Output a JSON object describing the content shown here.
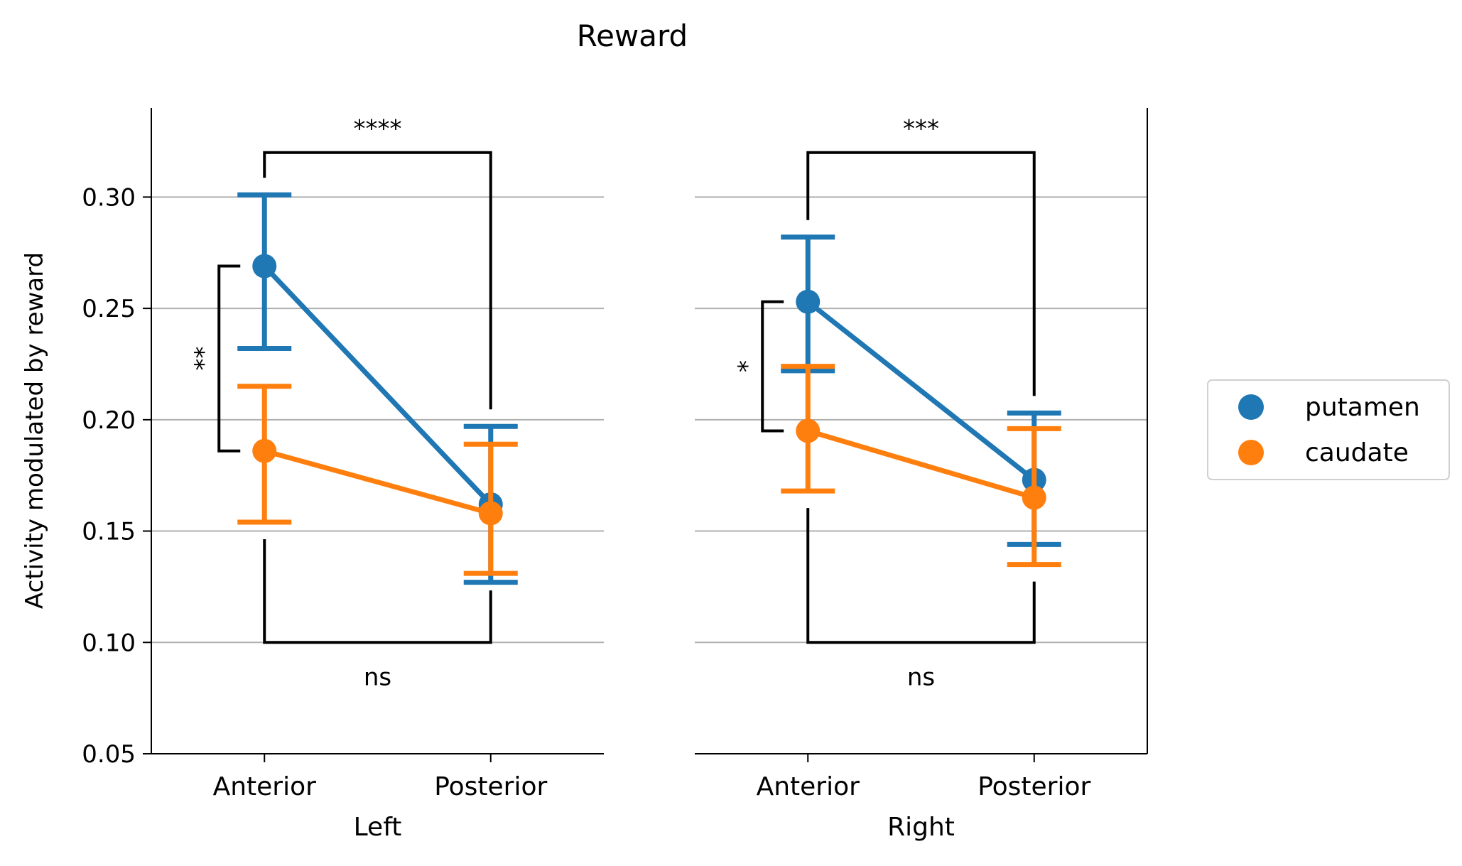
{
  "chart_data": {
    "type": "point",
    "title": "Reward",
    "ylabel": "Activity modulated by reward",
    "ylim": [
      0.05,
      0.34
    ],
    "yticks": [
      0.05,
      0.1,
      0.15,
      0.2,
      0.25,
      0.3
    ],
    "ytick_labels": [
      "0.05",
      "0.10",
      "0.15",
      "0.20",
      "0.25",
      "0.30"
    ],
    "grid": "horizontal",
    "categories": [
      "Anterior",
      "Posterior"
    ],
    "legend": {
      "position": "center-right",
      "entries": [
        "putamen",
        "caudate"
      ]
    },
    "colors": {
      "putamen": "#1f77b4",
      "caudate": "#ff7f0e",
      "grid": "#b0b0b0",
      "bracket": "#000000"
    },
    "panels": [
      {
        "xlabel": "Left",
        "series": [
          {
            "name": "putamen",
            "values": [
              0.269,
              0.162
            ],
            "ci_low": [
              0.232,
              0.127
            ],
            "ci_high": [
              0.301,
              0.197
            ]
          },
          {
            "name": "caudate",
            "values": [
              0.186,
              0.158
            ],
            "ci_low": [
              0.154,
              0.131
            ],
            "ci_high": [
              0.215,
              0.189
            ]
          }
        ],
        "annotations": [
          {
            "label": "****",
            "from": "putamen-Anterior",
            "to": "putamen-Posterior",
            "position": "top"
          },
          {
            "label": "ns",
            "from": "caudate-Anterior",
            "to": "caudate-Posterior",
            "position": "bottom"
          },
          {
            "label": "**",
            "from": "putamen-Anterior",
            "to": "caudate-Anterior",
            "position": "left"
          }
        ]
      },
      {
        "xlabel": "Right",
        "series": [
          {
            "name": "putamen",
            "values": [
              0.253,
              0.173
            ],
            "ci_low": [
              0.222,
              0.144
            ],
            "ci_high": [
              0.282,
              0.203
            ]
          },
          {
            "name": "caudate",
            "values": [
              0.195,
              0.165
            ],
            "ci_low": [
              0.168,
              0.135
            ],
            "ci_high": [
              0.224,
              0.196
            ]
          }
        ],
        "annotations": [
          {
            "label": "***",
            "from": "putamen-Anterior",
            "to": "putamen-Posterior",
            "position": "top"
          },
          {
            "label": "ns",
            "from": "caudate-Anterior",
            "to": "caudate-Posterior",
            "position": "bottom"
          },
          {
            "label": "*",
            "from": "putamen-Anterior",
            "to": "caudate-Anterior",
            "position": "left"
          }
        ]
      }
    ]
  }
}
